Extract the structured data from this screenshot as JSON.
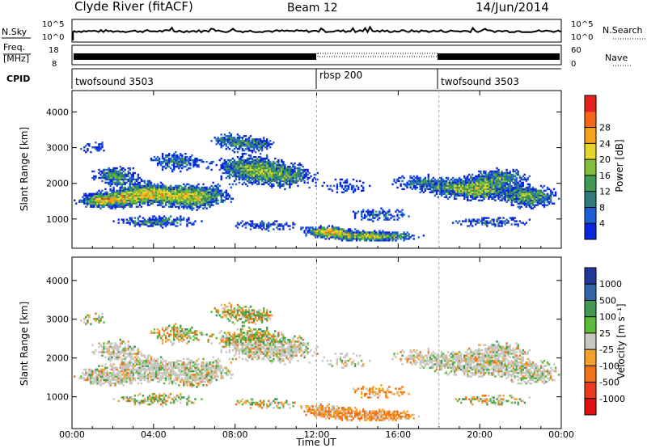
{
  "header": {
    "station": "Clyde River (fitACF)",
    "beam": "Beam 12",
    "date": "14/Jun/2014"
  },
  "strip_nsky": {
    "left_label": "N.Sky",
    "right_label": "N.Search",
    "y_ticks": [
      "10^5",
      "10^0"
    ]
  },
  "strip_freq": {
    "left_label_1": "Freq.",
    "left_label_2": "[MHz]",
    "left_ticks": [
      "18",
      "8"
    ],
    "right_ticks": [
      "60",
      "0"
    ],
    "right_label": "Nave"
  },
  "cpid": {
    "label": "CPID",
    "segments": [
      {
        "name": "twofsound 3503",
        "start_hour": 0
      },
      {
        "name": "rbsp 200",
        "start_hour": 12
      },
      {
        "name": "twofsound 3503",
        "start_hour": 18
      }
    ]
  },
  "chart_data": [
    {
      "type": "heatmap",
      "panel": "power",
      "ylabel": "Slant Range [km]",
      "xlabel": "Time UT",
      "x_ticks": [
        "00:00",
        "04:00",
        "08:00",
        "12:00",
        "16:00",
        "20:00",
        "00:00"
      ],
      "x_range_hours": [
        0,
        24
      ],
      "y_ticks": [
        1000,
        2000,
        3000,
        4000
      ],
      "y_range_km": [
        180,
        4600
      ],
      "colorbar": {
        "label": "Power [dB]",
        "ticks": [
          "4",
          "8",
          "12",
          "16",
          "20",
          "24",
          "28"
        ],
        "colors": [
          "#0b24e0",
          "#1d5fd6",
          "#2e7d7d",
          "#3f9a52",
          "#7fbf3a",
          "#e6d52a",
          "#f7a21b",
          "#f2661a",
          "#e61f1f"
        ]
      }
    },
    {
      "type": "heatmap",
      "panel": "velocity",
      "ylabel": "Slant Range [km]",
      "xlabel": "Time UT",
      "x_ticks": [
        "00:00",
        "04:00",
        "08:00",
        "12:00",
        "16:00",
        "20:00",
        "00:00"
      ],
      "x_range_hours": [
        0,
        24
      ],
      "y_ticks": [
        1000,
        2000,
        3000,
        4000
      ],
      "y_range_km": [
        180,
        4600
      ],
      "colorbar": {
        "label": "Velocity [m s⁻¹]",
        "ticks": [
          "1000",
          "500",
          "100",
          "25",
          "-25",
          "-100",
          "-500",
          "-1000"
        ],
        "colors": [
          "#1f3a9c",
          "#2f66a8",
          "#3f9a52",
          "#5dbb3a",
          "#c8c8c0",
          "#f3a12a",
          "#f0731c",
          "#ea3b1c",
          "#e01010"
        ]
      }
    }
  ]
}
